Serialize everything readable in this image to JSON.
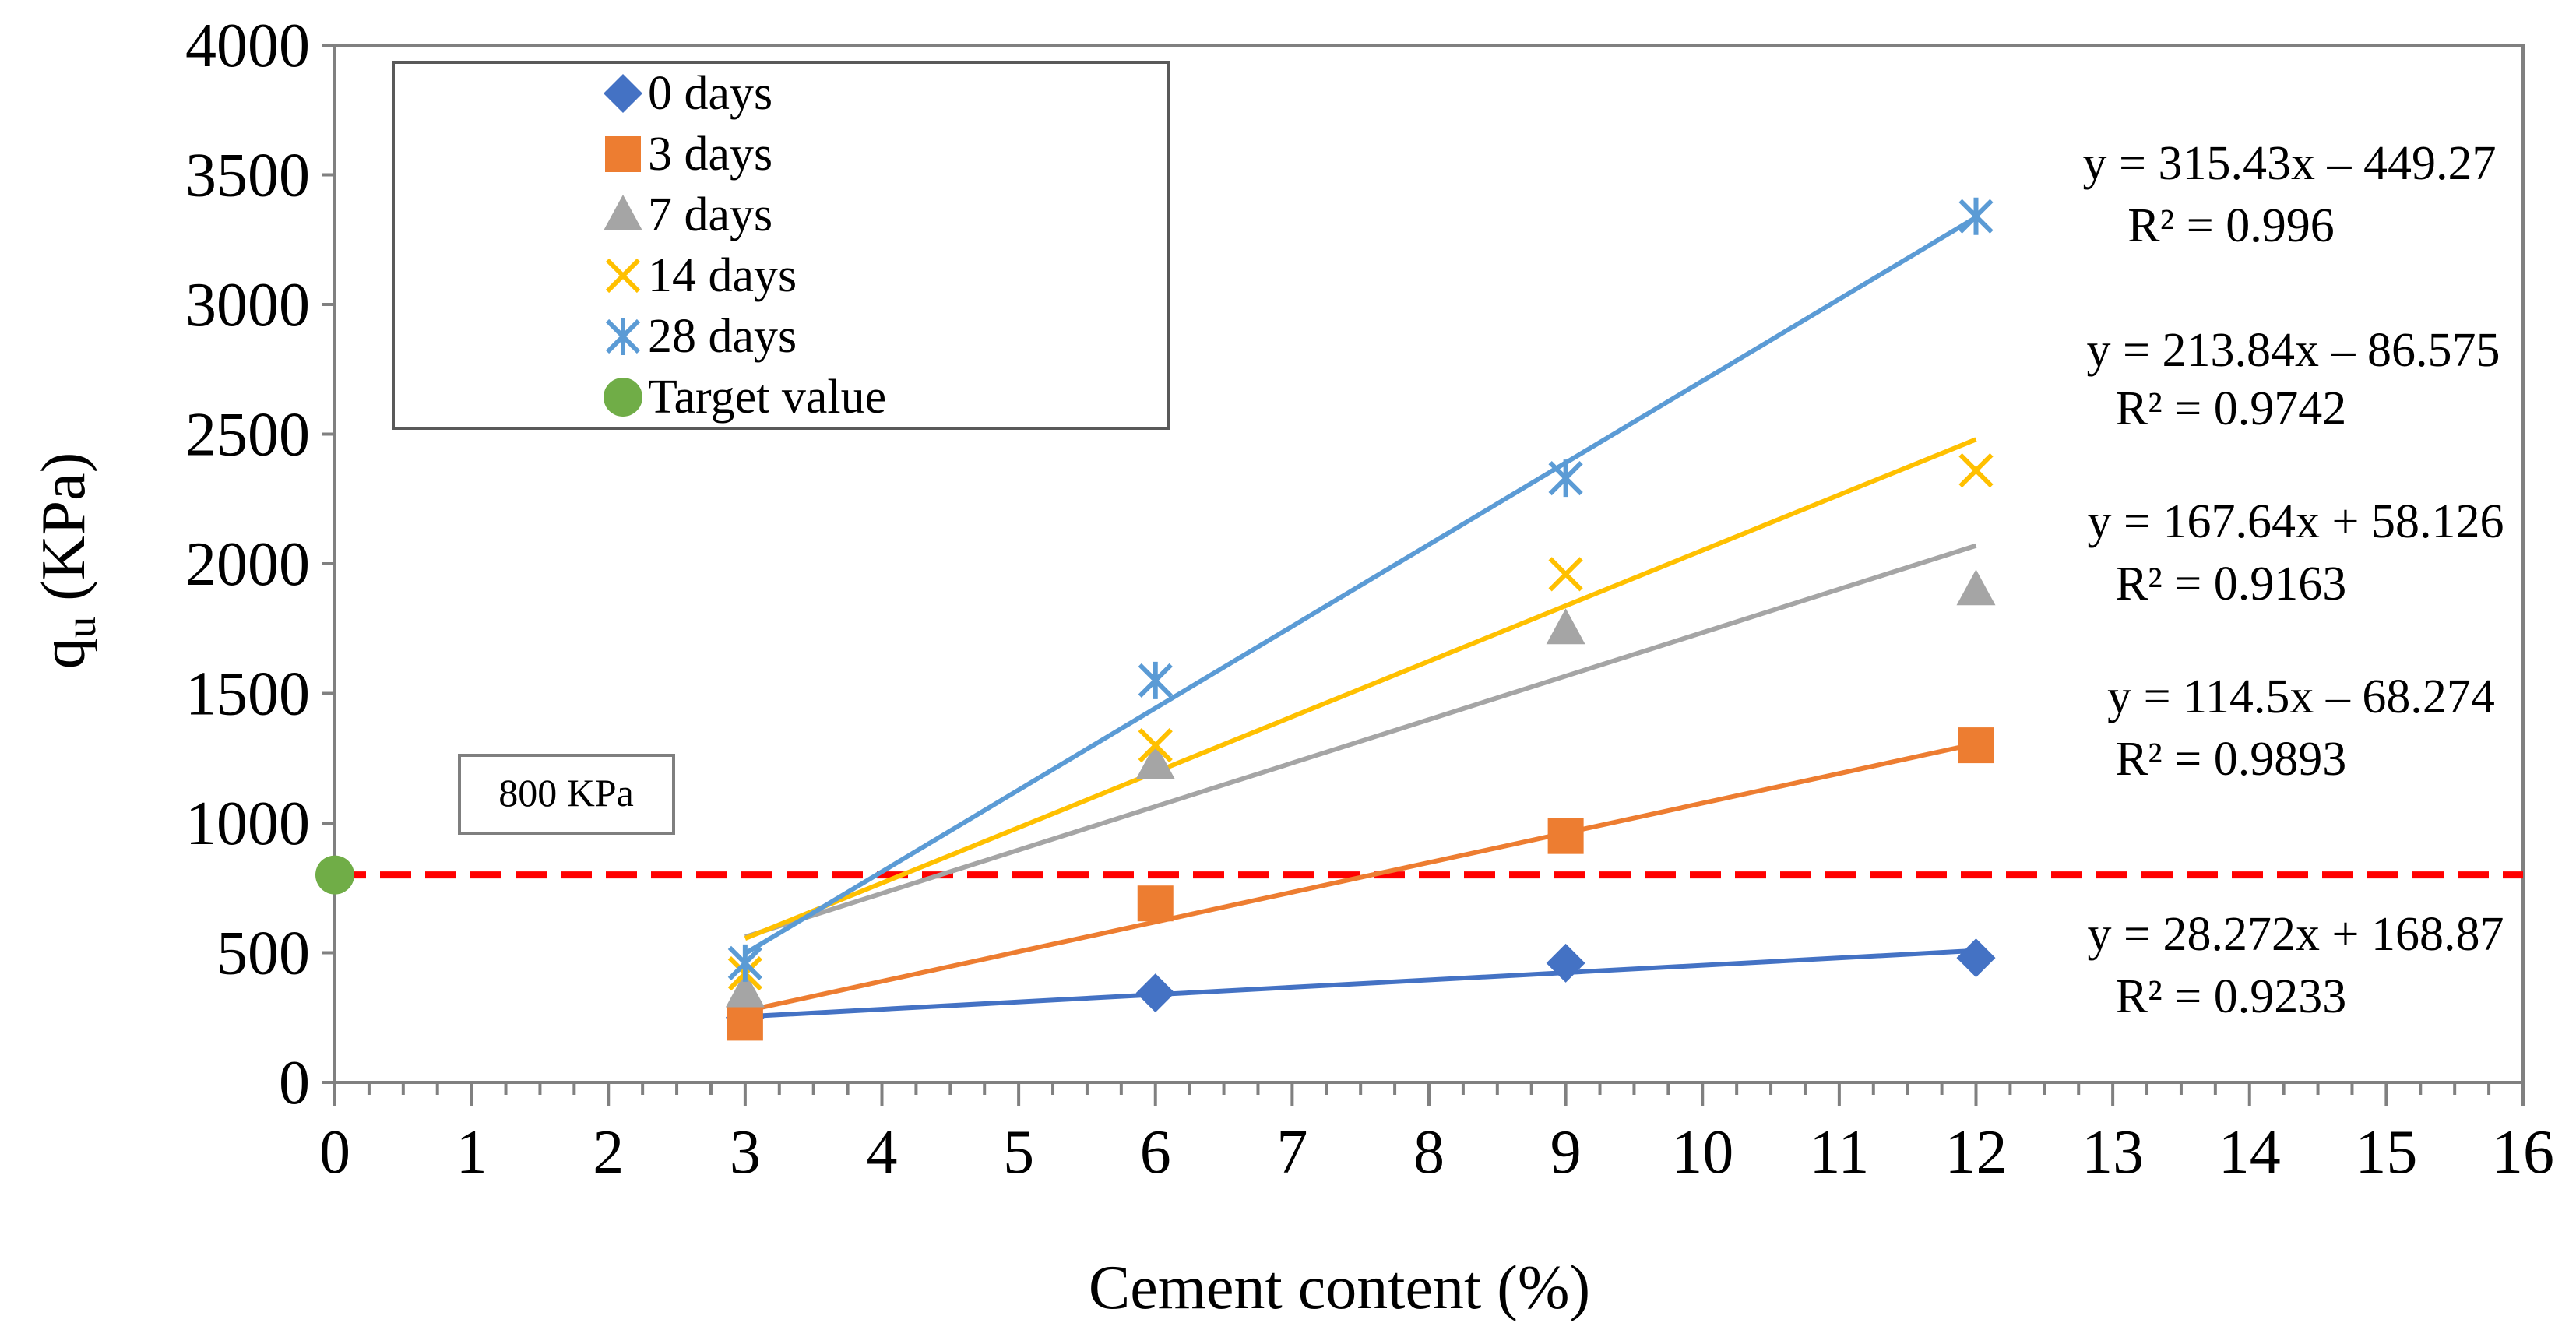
{
  "chart_data": {
    "type": "scatter",
    "title": "",
    "xlabel": "Cement content (%)",
    "ylabel": "q",
    "ylabel_sub": "u",
    "ylabel_unit": " (KPa)",
    "xlim": [
      0,
      16
    ],
    "ylim": [
      0,
      4000
    ],
    "x_ticks": [
      0,
      1,
      2,
      3,
      4,
      5,
      6,
      7,
      8,
      9,
      10,
      11,
      12,
      13,
      14,
      15,
      16
    ],
    "y_ticks": [
      0,
      500,
      1000,
      1500,
      2000,
      2500,
      3000,
      3500,
      4000
    ],
    "x_minor_step": 0.25,
    "legend_position": "top-left",
    "series": [
      {
        "name": "0 days",
        "marker": "diamond",
        "color": "#4472C4",
        "x": [
          3,
          6,
          9,
          12
        ],
        "y": [
          250,
          345,
          460,
          480
        ],
        "trend": {
          "slope": 28.272,
          "intercept": 168.87
        },
        "equation": "y = 28.272x + 168.87",
        "r2": "R² = 0.9233"
      },
      {
        "name": "3 days",
        "marker": "square",
        "color": "#ED7D31",
        "x": [
          3,
          6,
          9,
          12
        ],
        "y": [
          230,
          690,
          950,
          1300
        ],
        "trend": {
          "slope": 114.5,
          "intercept": -68.274
        },
        "equation": "y = 114.5x – 68.274",
        "r2": "R² = 0.9893"
      },
      {
        "name": "7 days",
        "marker": "triangle",
        "color": "#A5A5A5",
        "x": [
          3,
          6,
          9,
          12
        ],
        "y": [
          350,
          1230,
          1750,
          1900
        ],
        "trend": {
          "slope": 167.64,
          "intercept": 58.126
        },
        "equation": "y = 167.64x + 58.126",
        "r2": "R² = 0.9163"
      },
      {
        "name": "14 days",
        "marker": "x",
        "color": "#FFC000",
        "x": [
          3,
          6,
          9,
          12
        ],
        "y": [
          420,
          1300,
          1960,
          2360
        ],
        "trend": {
          "slope": 213.84,
          "intercept": -86.575
        },
        "equation": "y = 213.84x – 86.575",
        "r2": "R² = 0.9742"
      },
      {
        "name": "28 days",
        "marker": "asterisk",
        "color": "#5B9BD5",
        "x": [
          3,
          6,
          9,
          12
        ],
        "y": [
          460,
          1550,
          2330,
          3340
        ],
        "trend": {
          "slope": 315.43,
          "intercept": -449.27
        },
        "equation": "y = 315.43x – 449.27",
        "r2": "R² = 0.996"
      },
      {
        "name": "Target value",
        "marker": "circle",
        "color": "#70AD47",
        "x": [
          0
        ],
        "y": [
          800
        ]
      }
    ],
    "reference_line": {
      "y": 800,
      "color": "#FF0000",
      "style": "dashed"
    },
    "annotation": "800 KPa"
  }
}
